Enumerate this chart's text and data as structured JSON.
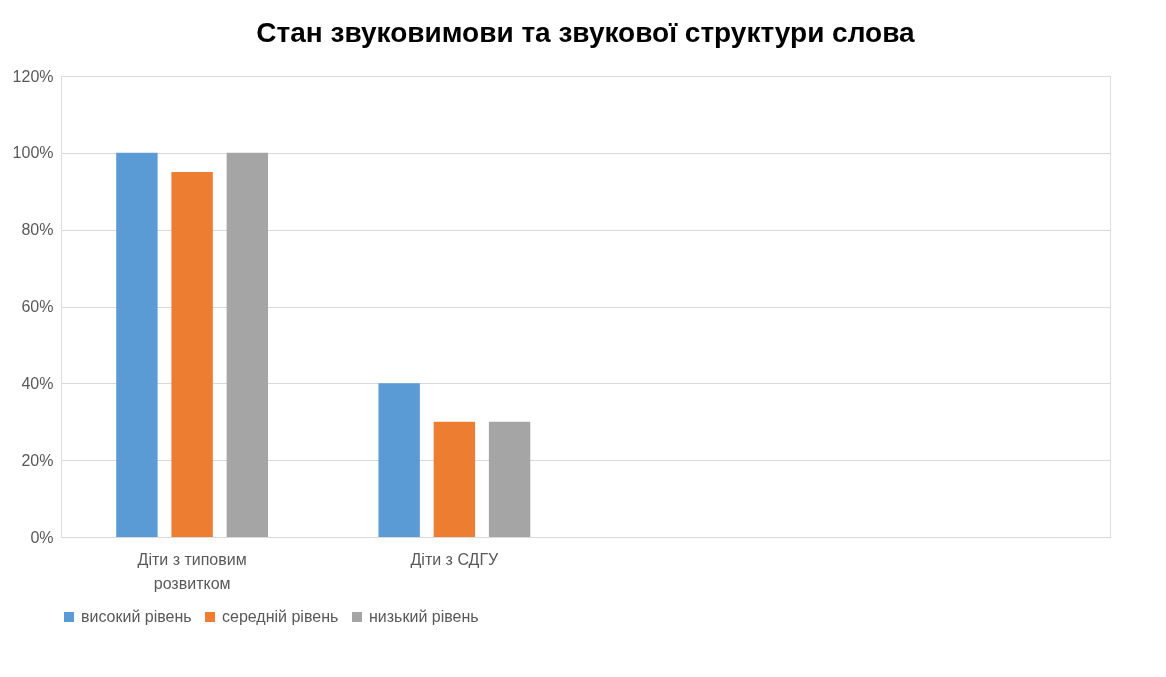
{
  "chart_data": {
    "type": "bar",
    "title": "Стан звуковимови та  звукової структури слова",
    "categories": [
      "Діти з типовим розвитком",
      "Діти з СДГУ",
      null,
      null
    ],
    "series": [
      {
        "name": "високий рівень",
        "color": "#5b9bd5",
        "values": [
          100,
          40,
          null,
          null
        ]
      },
      {
        "name": "середній рівень",
        "color": "#ed7d31",
        "values": [
          95,
          30,
          null,
          null
        ]
      },
      {
        "name": "низький рівень",
        "color": "#a5a5a5",
        "values": [
          100,
          30,
          null,
          null
        ]
      }
    ],
    "ylim": [
      0,
      120
    ],
    "yticks": [
      {
        "value": 0,
        "label": "0%"
      },
      {
        "value": 20,
        "label": "20%"
      },
      {
        "value": 40,
        "label": "40%"
      },
      {
        "value": 60,
        "label": "60%"
      },
      {
        "value": 80,
        "label": "80%"
      },
      {
        "value": 100,
        "label": "100%"
      },
      {
        "value": 120,
        "label": "120%"
      }
    ],
    "grid": "y",
    "legend": "bottom"
  }
}
